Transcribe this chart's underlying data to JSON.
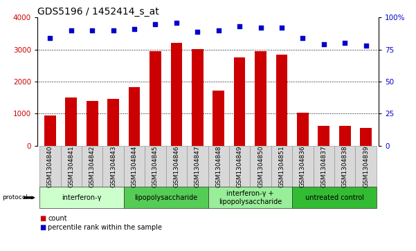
{
  "title": "GDS5196 / 1452414_s_at",
  "samples": [
    "GSM1304840",
    "GSM1304841",
    "GSM1304842",
    "GSM1304843",
    "GSM1304844",
    "GSM1304845",
    "GSM1304846",
    "GSM1304847",
    "GSM1304848",
    "GSM1304849",
    "GSM1304850",
    "GSM1304851",
    "GSM1304836",
    "GSM1304837",
    "GSM1304838",
    "GSM1304839"
  ],
  "counts": [
    950,
    1500,
    1400,
    1460,
    1830,
    2960,
    3220,
    3020,
    1720,
    2760,
    2960,
    2840,
    1020,
    620,
    620,
    560
  ],
  "percentiles": [
    84,
    90,
    90,
    90,
    91,
    95,
    96,
    89,
    90,
    93,
    92,
    92,
    84,
    79,
    80,
    78
  ],
  "bar_color": "#cc0000",
  "dot_color": "#0000cc",
  "ylim_left": [
    0,
    4000
  ],
  "ylim_right": [
    0,
    100
  ],
  "yticks_left": [
    0,
    1000,
    2000,
    3000,
    4000
  ],
  "yticks_right": [
    0,
    25,
    50,
    75,
    100
  ],
  "ylabel_right_labels": [
    "0",
    "25",
    "50",
    "75",
    "100%"
  ],
  "groups": [
    {
      "label": "interferon-γ",
      "start": 0,
      "end": 4,
      "color": "#ccffcc"
    },
    {
      "label": "lipopolysaccharide",
      "start": 4,
      "end": 8,
      "color": "#55cc55"
    },
    {
      "label": "interferon-γ +\nlipopolysaccharide",
      "start": 8,
      "end": 12,
      "color": "#99ee99"
    },
    {
      "label": "untreated control",
      "start": 12,
      "end": 16,
      "color": "#33bb33"
    }
  ],
  "protocol_label": "protocol",
  "legend_count_label": "count",
  "legend_pct_label": "percentile rank within the sample",
  "title_fontsize": 10,
  "tick_fontsize": 6.5,
  "label_fontsize": 7.5,
  "group_fontsize": 7,
  "xlim": [
    -0.6,
    15.6
  ]
}
